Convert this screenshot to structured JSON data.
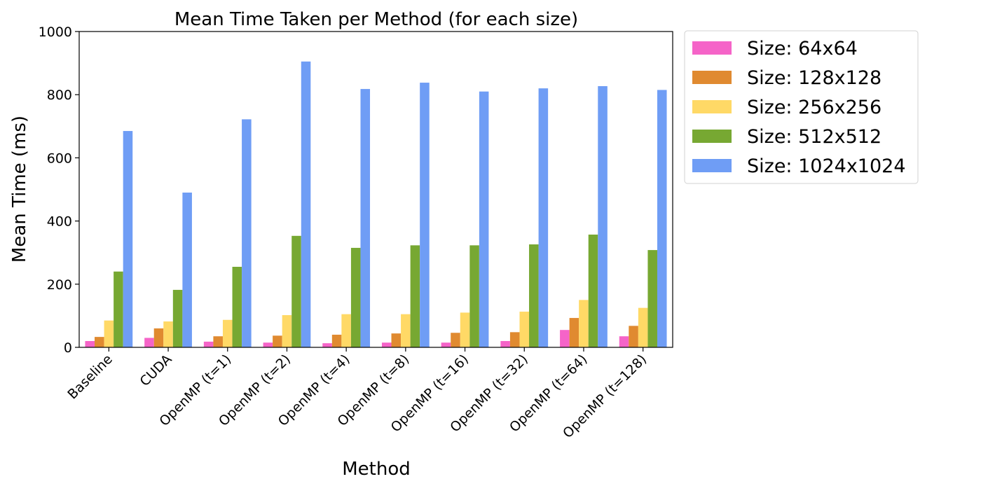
{
  "chart_data": {
    "type": "bar",
    "title": "Mean Time Taken per Method (for each size)",
    "xlabel": "Method",
    "ylabel": "Mean Time (ms)",
    "ylim": [
      0,
      1000
    ],
    "yticks": [
      0,
      200,
      400,
      600,
      800,
      1000
    ],
    "grid": false,
    "legend_position": "outside-upper-right",
    "categories": [
      "Baseline",
      "CUDA",
      "OpenMP (t=1)",
      "OpenMP (t=2)",
      "OpenMP (t=4)",
      "OpenMP (t=8)",
      "OpenMP (t=16)",
      "OpenMP (t=32)",
      "OpenMP (t=64)",
      "OpenMP (t=128)"
    ],
    "series": [
      {
        "name": "Size: 64x64",
        "color": "#f564c8",
        "values": [
          20,
          30,
          18,
          15,
          13,
          15,
          15,
          20,
          55,
          35
        ]
      },
      {
        "name": "Size: 128x128",
        "color": "#e08a30",
        "values": [
          33,
          60,
          35,
          37,
          40,
          44,
          46,
          48,
          93,
          68
        ]
      },
      {
        "name": "Size: 256x256",
        "color": "#ffd966",
        "values": [
          85,
          82,
          87,
          102,
          105,
          105,
          110,
          113,
          150,
          125
        ]
      },
      {
        "name": "Size: 512x512",
        "color": "#77a832",
        "values": [
          240,
          182,
          255,
          353,
          315,
          323,
          323,
          326,
          357,
          308
        ]
      },
      {
        "name": "Size: 1024x1024",
        "color": "#6f9df5",
        "values": [
          685,
          490,
          722,
          905,
          818,
          838,
          810,
          820,
          827,
          815
        ]
      }
    ]
  }
}
